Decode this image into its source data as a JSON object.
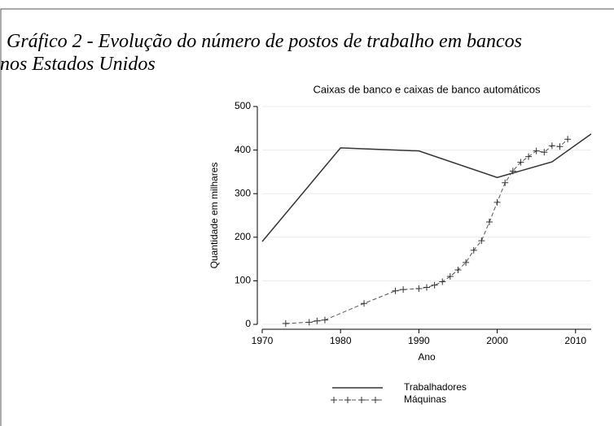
{
  "chart_data": {
    "type": "line",
    "title": "Gráfico 2 - Evolução do número de postos de trabalho em bancos nos Estados Unidos",
    "subtitle": "Caixas de banco e caixas de banco automáticos",
    "x_label": "Ano",
    "y_label": "Quantidade em milhares",
    "xlim": [
      1970,
      2012
    ],
    "xticks": [
      1970,
      1980,
      1990,
      2000,
      2010
    ],
    "ylim": [
      0,
      500
    ],
    "yticks": [
      0,
      100,
      200,
      300,
      400,
      500
    ],
    "grid": true,
    "series": [
      {
        "name": "Trabalhadores",
        "color": "#333333",
        "style": "solid",
        "x": [
          1970,
          1980,
          1990,
          2000,
          2007,
          2012
        ],
        "values": [
          190,
          405,
          398,
          337,
          373,
          437
        ]
      },
      {
        "name": "Máquinas",
        "color": "#555555",
        "style": "dashed-plus",
        "x": [
          1973,
          1976,
          1977,
          1978,
          1983,
          1987,
          1988,
          1990,
          1991,
          1992,
          1993,
          1994,
          1995,
          1996,
          1997,
          1998,
          1999,
          2000,
          2001,
          2002,
          2003,
          2004,
          2005,
          2006,
          2007,
          2008,
          2009
        ],
        "values": [
          2,
          5,
          8,
          10,
          48,
          77,
          80,
          82,
          85,
          90,
          98,
          110,
          125,
          142,
          170,
          192,
          235,
          280,
          325,
          352,
          372,
          385,
          398,
          395,
          410,
          408,
          425
        ]
      }
    ]
  }
}
